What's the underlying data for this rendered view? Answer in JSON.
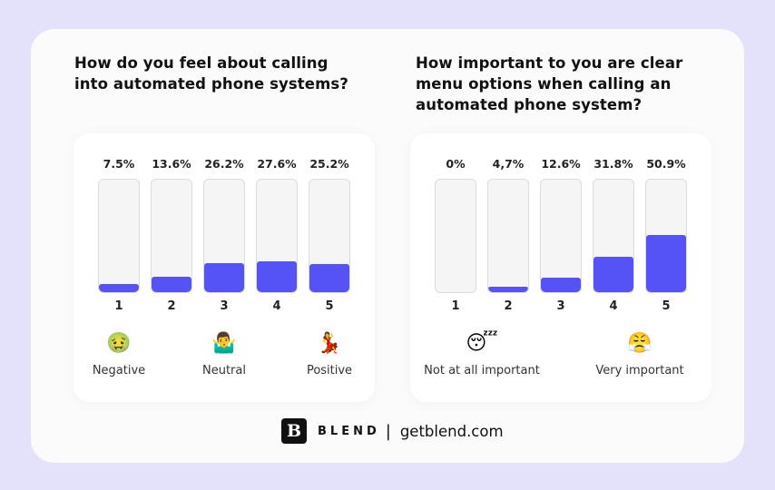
{
  "chart_data": [
    {
      "type": "bar",
      "title": "How do you feel about calling into automated phone systems?",
      "categories": [
        "1",
        "2",
        "3",
        "4",
        "5"
      ],
      "values": [
        7.5,
        13.6,
        26.2,
        27.6,
        25.2
      ],
      "value_labels": [
        "7.5%",
        "13.6%",
        "26.2%",
        "27.6%",
        "25.2%"
      ],
      "ylim": [
        0,
        100
      ],
      "scale_labels": [
        {
          "text": "Negative",
          "emoji": "🤢",
          "at": "1"
        },
        {
          "text": "Neutral",
          "emoji": "🤷‍♂️",
          "at": "3"
        },
        {
          "text": "Positive",
          "emoji": "💃",
          "at": "5"
        }
      ],
      "bar_color": "#5553f5"
    },
    {
      "type": "bar",
      "title": "How important to you are clear menu options when calling an automated phone system?",
      "categories": [
        "1",
        "2",
        "3",
        "4",
        "5"
      ],
      "values": [
        0,
        4.7,
        12.6,
        31.8,
        50.9
      ],
      "value_labels": [
        "0%",
        "4,7%",
        "12.6%",
        "31.8%",
        "50.9%"
      ],
      "ylim": [
        0,
        100
      ],
      "scale_labels": [
        {
          "text": "Not at all important",
          "emoji": "😴",
          "at": "1.5"
        },
        {
          "text": "Very important",
          "emoji": "😤",
          "at": "4.5"
        }
      ],
      "bar_color": "#5553f5"
    }
  ],
  "footer": {
    "logo_letter": "B",
    "brand": "BLEND",
    "separator": "|",
    "site": "getblend.com"
  },
  "colors": {
    "background": "#e4e1fb",
    "card": "#fbfbfc",
    "accent": "#5553f5"
  }
}
